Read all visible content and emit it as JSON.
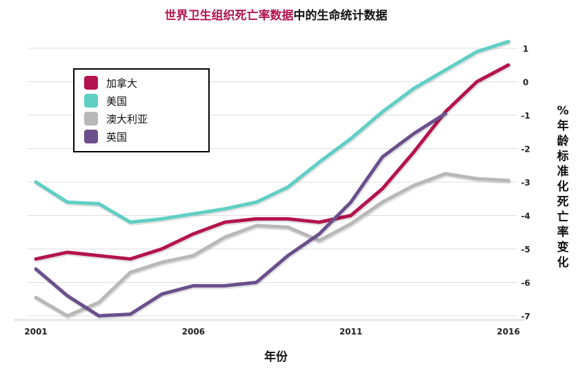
{
  "chart_data": {
    "type": "line",
    "title_highlight": "世界卫生组织死亡率数据",
    "title_rest": "中的生命统计数据",
    "xlabel": "年份",
    "ylabel": "%年龄标准化死亡率变化",
    "x_ticks": [
      "2001",
      "2006",
      "2011",
      "2016"
    ],
    "y_ticks": [
      "1",
      "0",
      "-1",
      "-2",
      "-3",
      "-4",
      "-5",
      "-6",
      "-7"
    ],
    "xlim": [
      2001,
      2016
    ],
    "ylim": [
      -7,
      1
    ],
    "series": [
      {
        "name": "加拿大",
        "color": "#b3134e",
        "x": [
          2001,
          2002,
          2003,
          2004,
          2005,
          2006,
          2007,
          2008,
          2009,
          2010,
          2011,
          2012,
          2013,
          2014,
          2015,
          2016
        ],
        "values": [
          -5.3,
          -5.1,
          -5.2,
          -5.3,
          -5.0,
          -4.55,
          -4.2,
          -4.1,
          -4.1,
          -4.2,
          -4.0,
          -3.2,
          -2.1,
          -0.9,
          0.0,
          0.5
        ]
      },
      {
        "name": "美国",
        "color": "#5fcfc4",
        "x": [
          2001,
          2002,
          2003,
          2004,
          2005,
          2006,
          2007,
          2008,
          2009,
          2010,
          2011,
          2012,
          2013,
          2014,
          2015,
          2016
        ],
        "values": [
          -3.0,
          -3.6,
          -3.65,
          -4.2,
          -4.1,
          -3.95,
          -3.8,
          -3.6,
          -3.15,
          -2.4,
          -1.7,
          -0.9,
          -0.2,
          0.35,
          0.9,
          1.2
        ]
      },
      {
        "name": "澳大利亚",
        "color": "#b8b8b8",
        "x": [
          2001,
          2002,
          2003,
          2004,
          2005,
          2006,
          2007,
          2008,
          2009,
          2010,
          2011,
          2012,
          2013,
          2014,
          2015,
          2016
        ],
        "values": [
          -6.45,
          -7.0,
          -6.6,
          -5.7,
          -5.4,
          -5.2,
          -4.65,
          -4.3,
          -4.35,
          -4.75,
          -4.25,
          -3.6,
          -3.1,
          -2.75,
          -2.9,
          -2.95
        ]
      },
      {
        "name": "英国",
        "color": "#6b4f8c",
        "x": [
          2001,
          2002,
          2003,
          2004,
          2005,
          2006,
          2007,
          2008,
          2009,
          2010,
          2011,
          2012,
          2013,
          2014
        ],
        "values": [
          -5.6,
          -6.4,
          -7.0,
          -6.95,
          -6.35,
          -6.1,
          -6.1,
          -6.0,
          -5.2,
          -4.55,
          -3.6,
          -2.25,
          -1.55,
          -0.95
        ]
      }
    ]
  }
}
